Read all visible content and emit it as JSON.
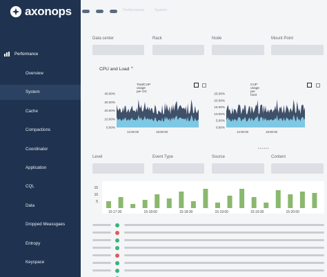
{
  "app": {
    "logo_text": "axonops"
  },
  "topbar": {
    "crumbs": [
      "Performance",
      "System"
    ]
  },
  "sidebar": {
    "section": "Performance",
    "items": [
      {
        "label": "Overview",
        "active": false
      },
      {
        "label": "System",
        "active": true
      },
      {
        "label": "Cache",
        "active": false
      },
      {
        "label": "Compactions",
        "active": false
      },
      {
        "label": "Coordinator",
        "active": false
      },
      {
        "label": "Application",
        "active": false
      },
      {
        "label": "CQL",
        "active": false
      },
      {
        "label": "Data",
        "active": false
      },
      {
        "label": "Dropped Meassgaes",
        "active": false
      },
      {
        "label": "Entropy",
        "active": false
      },
      {
        "label": "Keyspace",
        "active": false
      }
    ]
  },
  "filters": {
    "labels": [
      "Data center",
      "Rack",
      "Node",
      "Mount Point"
    ]
  },
  "cpu_section": {
    "title": "CPU and Load"
  },
  "event_filters": {
    "labels": [
      "Level",
      "Event Type",
      "Source",
      "Content"
    ]
  },
  "chart_data": [
    {
      "type": "area",
      "title": "TotalCUP usage per DC",
      "ylim": [
        0,
        40
      ],
      "y_ticks": [
        "40.00%",
        "30.00%",
        "20.00%",
        "10.00%",
        "0.00%"
      ],
      "x_ticks": [
        "12:00:00",
        "18:00:00"
      ],
      "colors": {
        "line": "#1f3350",
        "fill": "#7ec8e3"
      }
    },
    {
      "type": "area",
      "title": "CUP usage per host",
      "ylim": [
        0,
        25
      ],
      "y_ticks": [
        "25.00%",
        "20.00%",
        "15.00%",
        "10.00%",
        "5.00%",
        "0.00%"
      ],
      "x_ticks": [
        "12:00:00",
        "18:00:00"
      ],
      "colors": {
        "line": "#1f3350",
        "fill": "#7ec8e3"
      }
    },
    {
      "type": "bar",
      "y_ticks": [
        "15",
        "10",
        "5"
      ],
      "x_ticks": [
        "15:17:30",
        "15:18:00",
        "15:18:30",
        "15:19:00",
        "15:19:30",
        "15:20:00"
      ],
      "values": [
        5,
        8,
        3,
        6,
        10,
        7,
        12,
        5,
        14,
        4,
        9,
        14,
        8,
        4,
        13,
        10,
        12,
        11
      ],
      "ylim": [
        0,
        18
      ],
      "colors": {
        "bar": "#8ab86e"
      }
    }
  ],
  "event_rows": [
    {
      "status": "ok",
      "color": "#36b37e"
    },
    {
      "status": "error",
      "color": "#e05a5a"
    },
    {
      "status": "ok",
      "color": "#36b37e"
    },
    {
      "status": "ok",
      "color": "#36b37e"
    },
    {
      "status": "error",
      "color": "#e05a5a"
    },
    {
      "status": "ok",
      "color": "#36b37e"
    },
    {
      "status": "ok",
      "color": "#36b37e"
    },
    {
      "status": "ok",
      "color": "#36b37e"
    }
  ]
}
